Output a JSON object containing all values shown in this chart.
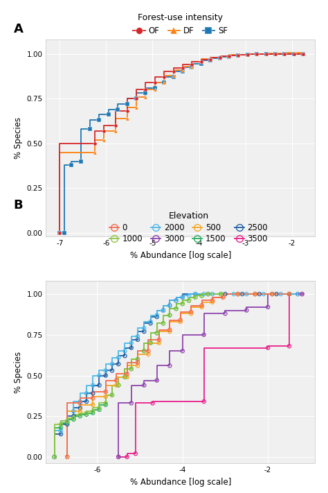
{
  "panel_A": {
    "legend_title": "Forest-use intensity",
    "legend_entries": [
      "OF",
      "DF",
      "SF"
    ],
    "legend_colors": [
      "#d62728",
      "#ff7f0e",
      "#1f77b4"
    ],
    "legend_markers": [
      "o",
      "^",
      "s"
    ],
    "xlabel": "% Abundance [log scale]",
    "ylabel": "% Species",
    "xlim": [
      -7.3,
      -1.5
    ],
    "ylim": [
      -0.02,
      1.08
    ],
    "xticks": [
      -7,
      -6,
      -5,
      -4,
      -3,
      -2
    ],
    "yticks": [
      0.0,
      0.25,
      0.5,
      0.75,
      1.0
    ],
    "ytick_labels": [
      "0.00",
      "0.25",
      "0.50",
      "0.75",
      "1.00"
    ],
    "series": {
      "OF": {
        "color": "#d62728",
        "marker": "o",
        "x": [
          -7.0,
          -7.0,
          -6.25,
          -6.25,
          -6.05,
          -6.05,
          -5.8,
          -5.8,
          -5.55,
          -5.55,
          -5.35,
          -5.35,
          -5.15,
          -5.15,
          -4.95,
          -4.95,
          -4.75,
          -4.75,
          -4.55,
          -4.55,
          -4.35,
          -4.35,
          -4.15,
          -4.15,
          -3.95,
          -3.95,
          -3.75,
          -3.75,
          -3.55,
          -3.55,
          -3.35,
          -3.35,
          -3.15,
          -3.15,
          -2.95,
          -2.95,
          -2.75,
          -2.75,
          -2.55,
          -2.55,
          -2.35,
          -2.35,
          -2.15,
          -2.15,
          -1.95,
          -1.95,
          -1.75
        ],
        "y": [
          0.0,
          0.5,
          0.5,
          0.57,
          0.57,
          0.6,
          0.6,
          0.68,
          0.68,
          0.75,
          0.75,
          0.8,
          0.8,
          0.84,
          0.84,
          0.87,
          0.87,
          0.9,
          0.9,
          0.92,
          0.92,
          0.94,
          0.94,
          0.955,
          0.955,
          0.968,
          0.968,
          0.978,
          0.978,
          0.985,
          0.985,
          0.99,
          0.99,
          0.994,
          0.994,
          0.997,
          0.997,
          0.998,
          0.998,
          0.999,
          0.999,
          1.0,
          1.0,
          1.0,
          1.0,
          1.0,
          1.0
        ]
      },
      "DF": {
        "color": "#ff7f0e",
        "marker": "^",
        "x": [
          -7.0,
          -7.0,
          -6.25,
          -6.25,
          -6.05,
          -6.05,
          -5.8,
          -5.8,
          -5.55,
          -5.55,
          -5.35,
          -5.35,
          -5.15,
          -5.15,
          -4.95,
          -4.95,
          -4.75,
          -4.75,
          -4.55,
          -4.55,
          -4.35,
          -4.35,
          -4.15,
          -4.15,
          -3.95,
          -3.95,
          -3.75,
          -3.75,
          -3.55,
          -3.55,
          -3.35,
          -3.35,
          -3.15,
          -3.15,
          -2.95,
          -2.95,
          -2.75,
          -2.75,
          -2.55,
          -2.55,
          -2.35,
          -2.35,
          -2.15,
          -2.15,
          -1.95,
          -1.95,
          -1.75
        ],
        "y": [
          0.0,
          0.45,
          0.45,
          0.52,
          0.52,
          0.57,
          0.57,
          0.64,
          0.64,
          0.7,
          0.7,
          0.76,
          0.76,
          0.8,
          0.8,
          0.84,
          0.84,
          0.88,
          0.88,
          0.91,
          0.91,
          0.93,
          0.93,
          0.955,
          0.955,
          0.97,
          0.97,
          0.98,
          0.98,
          0.988,
          0.988,
          0.993,
          0.993,
          0.996,
          0.996,
          0.998,
          0.998,
          0.999,
          0.999,
          1.001,
          1.001,
          1.003,
          1.003,
          1.005,
          1.005,
          1.005,
          1.005
        ]
      },
      "SF": {
        "color": "#1f77b4",
        "marker": "s",
        "x": [
          -7.0,
          -7.0,
          -6.9,
          -6.9,
          -6.75,
          -6.75,
          -6.55,
          -6.55,
          -6.35,
          -6.35,
          -6.15,
          -6.15,
          -5.95,
          -5.95,
          -5.75,
          -5.75,
          -5.55,
          -5.55,
          -5.35,
          -5.35,
          -5.15,
          -5.15,
          -4.95,
          -4.95,
          -4.75,
          -4.75,
          -4.55,
          -4.55,
          -4.35,
          -4.35,
          -4.15,
          -4.15,
          -3.95,
          -3.95,
          -3.75,
          -3.75,
          -3.55,
          -3.55,
          -3.35,
          -3.35,
          -3.15,
          -3.15,
          -2.95,
          -2.95,
          -2.75,
          -2.75,
          -2.55,
          -2.55,
          -2.35,
          -2.35,
          -2.15,
          -2.15,
          -1.95,
          -1.95,
          -1.75
        ],
        "y": [
          0.0,
          0.0,
          0.0,
          0.38,
          0.38,
          0.4,
          0.4,
          0.58,
          0.58,
          0.63,
          0.63,
          0.66,
          0.66,
          0.69,
          0.69,
          0.72,
          0.72,
          0.75,
          0.75,
          0.78,
          0.78,
          0.81,
          0.81,
          0.84,
          0.84,
          0.87,
          0.87,
          0.9,
          0.9,
          0.925,
          0.925,
          0.945,
          0.945,
          0.962,
          0.962,
          0.975,
          0.975,
          0.984,
          0.984,
          0.991,
          0.991,
          0.995,
          0.995,
          0.998,
          0.998,
          0.999,
          0.999,
          1.0,
          1.0,
          1.0,
          1.0,
          1.0,
          1.0,
          1.0,
          1.0
        ]
      }
    }
  },
  "panel_B": {
    "legend_title": "Elevation",
    "legend_entries": [
      "0",
      "500",
      "1000",
      "1500",
      "2000",
      "2500",
      "3000",
      "3500"
    ],
    "legend_colors": [
      "#f4694b",
      "#f5a623",
      "#8cc63f",
      "#27ae60",
      "#4db8e8",
      "#1f5fa6",
      "#8e44ad",
      "#e91e8c"
    ],
    "xlabel": "% Abundance [log scale]",
    "ylabel": "% Species",
    "xlim": [
      -7.2,
      -0.9
    ],
    "ylim": [
      -0.04,
      1.08
    ],
    "xticks": [
      -6,
      -4,
      -2
    ],
    "yticks": [
      0.0,
      0.25,
      0.5,
      0.75,
      1.0
    ],
    "ytick_labels": [
      "0.00",
      "0.25",
      "0.50",
      "0.75",
      "1.00"
    ],
    "series": {
      "0": {
        "color": "#f4694b",
        "x": [
          -6.7,
          -6.7,
          -6.4,
          -6.4,
          -6.1,
          -6.1,
          -5.8,
          -5.8,
          -5.55,
          -5.55,
          -5.3,
          -5.3,
          -5.05,
          -5.05,
          -4.8,
          -4.8,
          -4.55,
          -4.55,
          -4.3,
          -4.3,
          -4.05,
          -4.05,
          -3.8,
          -3.8,
          -3.55,
          -3.55,
          -3.3,
          -3.3,
          -3.05,
          -3.05,
          -2.7,
          -2.7,
          -2.3,
          -2.3,
          -1.9,
          -1.9,
          -1.5
        ],
        "y": [
          0.0,
          0.33,
          0.33,
          0.36,
          0.36,
          0.4,
          0.4,
          0.47,
          0.47,
          0.51,
          0.51,
          0.58,
          0.58,
          0.65,
          0.65,
          0.72,
          0.72,
          0.78,
          0.78,
          0.84,
          0.84,
          0.89,
          0.89,
          0.93,
          0.93,
          0.96,
          0.96,
          0.98,
          0.98,
          1.0,
          1.0,
          1.0,
          1.0,
          1.0,
          1.0,
          1.0,
          1.0
        ]
      },
      "500": {
        "color": "#f5a623",
        "x": [
          -6.7,
          -6.7,
          -6.4,
          -6.4,
          -6.1,
          -6.1,
          -5.8,
          -5.8,
          -5.55,
          -5.55,
          -5.3,
          -5.3,
          -5.05,
          -5.05,
          -4.8,
          -4.8,
          -4.55,
          -4.55,
          -4.3,
          -4.3,
          -4.05,
          -4.05,
          -3.8,
          -3.8,
          -3.55,
          -3.55,
          -3.3,
          -3.3,
          -3.05,
          -3.05,
          -2.7,
          -2.7,
          -2.3,
          -2.3,
          -1.9,
          -1.9,
          -1.5
        ],
        "y": [
          0.0,
          0.28,
          0.28,
          0.32,
          0.32,
          0.37,
          0.37,
          0.44,
          0.44,
          0.49,
          0.49,
          0.56,
          0.56,
          0.63,
          0.63,
          0.7,
          0.7,
          0.77,
          0.77,
          0.83,
          0.83,
          0.88,
          0.88,
          0.92,
          0.92,
          0.95,
          0.95,
          0.98,
          0.98,
          1.0,
          1.0,
          1.0,
          1.0,
          1.0,
          1.0,
          1.0,
          1.0
        ]
      },
      "1000": {
        "color": "#8cc63f",
        "x": [
          -7.0,
          -7.0,
          -6.85,
          -6.85,
          -6.7,
          -6.7,
          -6.55,
          -6.55,
          -6.4,
          -6.4,
          -6.25,
          -6.25,
          -6.1,
          -6.1,
          -5.95,
          -5.95,
          -5.8,
          -5.8,
          -5.65,
          -5.65,
          -5.5,
          -5.5,
          -5.35,
          -5.35,
          -5.2,
          -5.2,
          -5.05,
          -5.05,
          -4.9,
          -4.9,
          -4.75,
          -4.75,
          -4.6,
          -4.6,
          -4.45,
          -4.45,
          -4.3,
          -4.3,
          -4.15,
          -4.15,
          -4.0,
          -4.0,
          -3.85,
          -3.85,
          -3.7,
          -3.7,
          -3.55,
          -3.55,
          -3.4,
          -3.4,
          -3.1,
          -3.1,
          -2.7,
          -2.7,
          -2.3,
          -2.3,
          -1.9,
          -1.9,
          -1.5
        ],
        "y": [
          0.0,
          0.2,
          0.2,
          0.22,
          0.22,
          0.24,
          0.24,
          0.26,
          0.26,
          0.27,
          0.27,
          0.28,
          0.28,
          0.3,
          0.3,
          0.33,
          0.33,
          0.38,
          0.38,
          0.44,
          0.44,
          0.49,
          0.49,
          0.54,
          0.54,
          0.6,
          0.6,
          0.65,
          0.65,
          0.7,
          0.7,
          0.76,
          0.76,
          0.82,
          0.82,
          0.87,
          0.87,
          0.91,
          0.91,
          0.94,
          0.94,
          0.96,
          0.96,
          0.98,
          0.98,
          0.99,
          0.99,
          1.0,
          1.0,
          1.0,
          1.0,
          1.0,
          1.0,
          1.0,
          1.0,
          1.0,
          1.0,
          1.0,
          1.0
        ]
      },
      "1500": {
        "color": "#27ae60",
        "x": [
          -7.0,
          -7.0,
          -6.85,
          -6.85,
          -6.7,
          -6.7,
          -6.55,
          -6.55,
          -6.4,
          -6.4,
          -6.25,
          -6.25,
          -6.1,
          -6.1,
          -5.95,
          -5.95,
          -5.8,
          -5.8,
          -5.65,
          -5.65,
          -5.5,
          -5.5,
          -5.35,
          -5.35,
          -5.2,
          -5.2,
          -5.05,
          -5.05,
          -4.9,
          -4.9,
          -4.75,
          -4.75,
          -4.6,
          -4.6,
          -4.45,
          -4.45,
          -4.3,
          -4.3,
          -4.15,
          -4.15,
          -4.0,
          -4.0,
          -3.85,
          -3.85,
          -3.7,
          -3.7,
          -3.55,
          -3.55,
          -3.4,
          -3.4,
          -3.1,
          -3.1,
          -2.7,
          -2.7,
          -2.3,
          -2.3,
          -1.9,
          -1.9,
          -1.5
        ],
        "y": [
          0.0,
          0.18,
          0.18,
          0.21,
          0.21,
          0.23,
          0.23,
          0.25,
          0.25,
          0.26,
          0.26,
          0.27,
          0.27,
          0.29,
          0.29,
          0.32,
          0.32,
          0.38,
          0.38,
          0.44,
          0.44,
          0.49,
          0.49,
          0.54,
          0.54,
          0.6,
          0.6,
          0.65,
          0.65,
          0.7,
          0.7,
          0.76,
          0.76,
          0.82,
          0.82,
          0.87,
          0.87,
          0.91,
          0.91,
          0.94,
          0.94,
          0.96,
          0.96,
          0.98,
          0.98,
          0.99,
          0.99,
          1.0,
          1.0,
          1.0,
          1.0,
          1.0,
          1.0,
          1.0,
          1.0,
          1.0,
          1.0,
          1.0,
          1.0
        ]
      },
      "2000": {
        "color": "#4db8e8",
        "x": [
          -7.0,
          -7.0,
          -6.85,
          -6.85,
          -6.7,
          -6.7,
          -6.55,
          -6.55,
          -6.4,
          -6.4,
          -6.25,
          -6.25,
          -6.1,
          -6.1,
          -5.95,
          -5.95,
          -5.8,
          -5.8,
          -5.65,
          -5.65,
          -5.5,
          -5.5,
          -5.35,
          -5.35,
          -5.2,
          -5.2,
          -5.05,
          -5.05,
          -4.9,
          -4.9,
          -4.75,
          -4.75,
          -4.6,
          -4.6,
          -4.45,
          -4.45,
          -4.3,
          -4.3,
          -4.15,
          -4.15,
          -4.0,
          -4.0,
          -3.85,
          -3.85,
          -3.7,
          -3.7,
          -3.5,
          -3.5,
          -3.3,
          -3.3,
          -3.1,
          -3.1,
          -2.8,
          -2.8,
          -2.5,
          -2.5,
          -2.1,
          -2.1,
          -1.7,
          -1.7,
          -1.3
        ],
        "y": [
          0.0,
          0.16,
          0.16,
          0.22,
          0.22,
          0.28,
          0.28,
          0.34,
          0.34,
          0.39,
          0.39,
          0.44,
          0.44,
          0.5,
          0.5,
          0.53,
          0.53,
          0.57,
          0.57,
          0.61,
          0.61,
          0.65,
          0.65,
          0.7,
          0.7,
          0.74,
          0.74,
          0.79,
          0.79,
          0.83,
          0.83,
          0.87,
          0.87,
          0.9,
          0.9,
          0.93,
          0.93,
          0.96,
          0.96,
          0.98,
          0.98,
          0.99,
          0.99,
          1.0,
          1.0,
          1.0,
          1.0,
          1.0,
          1.0,
          1.0,
          1.0,
          1.0,
          1.0,
          1.0,
          1.0,
          1.0,
          1.0,
          1.0,
          1.0,
          1.0,
          1.0
        ]
      },
      "2500": {
        "color": "#1f5fa6",
        "x": [
          -7.0,
          -7.0,
          -6.85,
          -6.85,
          -6.7,
          -6.7,
          -6.55,
          -6.55,
          -6.4,
          -6.4,
          -6.25,
          -6.25,
          -6.1,
          -6.1,
          -5.95,
          -5.95,
          -5.8,
          -5.8,
          -5.65,
          -5.65,
          -5.5,
          -5.5,
          -5.35,
          -5.35,
          -5.2,
          -5.2,
          -5.05,
          -5.05,
          -4.9,
          -4.9,
          -4.75,
          -4.75,
          -4.6,
          -4.6,
          -4.45,
          -4.45,
          -4.3,
          -4.3,
          -4.15,
          -4.15,
          -4.0,
          -4.0,
          -3.7,
          -3.7,
          -3.4,
          -3.4,
          -3.0,
          -3.0,
          -2.6,
          -2.6,
          -2.2,
          -2.2,
          -1.8,
          -1.8,
          -1.3
        ],
        "y": [
          0.0,
          0.14,
          0.14,
          0.2,
          0.2,
          0.25,
          0.25,
          0.3,
          0.3,
          0.34,
          0.34,
          0.39,
          0.39,
          0.44,
          0.44,
          0.5,
          0.5,
          0.53,
          0.53,
          0.57,
          0.57,
          0.62,
          0.62,
          0.67,
          0.67,
          0.72,
          0.72,
          0.77,
          0.77,
          0.82,
          0.82,
          0.86,
          0.86,
          0.9,
          0.9,
          0.93,
          0.93,
          0.96,
          0.96,
          0.98,
          0.98,
          1.0,
          1.0,
          1.0,
          1.0,
          1.0,
          1.0,
          1.0,
          1.0,
          1.0,
          1.0,
          1.0,
          1.0,
          1.0,
          1.0
        ]
      },
      "3000": {
        "color": "#8e44ad",
        "x": [
          -5.5,
          -5.5,
          -5.2,
          -5.2,
          -4.9,
          -4.9,
          -4.6,
          -4.6,
          -4.3,
          -4.3,
          -4.0,
          -4.0,
          -3.5,
          -3.5,
          -3.0,
          -3.0,
          -2.5,
          -2.5,
          -2.0,
          -2.0,
          -1.5,
          -1.5,
          -1.2
        ],
        "y": [
          0.0,
          0.33,
          0.33,
          0.44,
          0.44,
          0.47,
          0.47,
          0.56,
          0.56,
          0.65,
          0.65,
          0.75,
          0.75,
          0.88,
          0.88,
          0.9,
          0.9,
          0.92,
          0.92,
          1.0,
          1.0,
          1.0,
          1.0
        ]
      },
      "3500": {
        "color": "#e91e8c",
        "x": [
          -5.5,
          -5.5,
          -5.3,
          -5.3,
          -5.1,
          -5.1,
          -4.7,
          -4.7,
          -3.5,
          -3.5,
          -2.0,
          -2.0,
          -1.5,
          -1.5,
          -1.2
        ],
        "y": [
          0.0,
          0.0,
          0.0,
          0.02,
          0.02,
          0.33,
          0.33,
          0.34,
          0.34,
          0.67,
          0.67,
          0.68,
          0.68,
          1.0,
          1.0
        ]
      }
    }
  },
  "bg_color": "#f0f0f0",
  "grid_color": "#ffffff"
}
